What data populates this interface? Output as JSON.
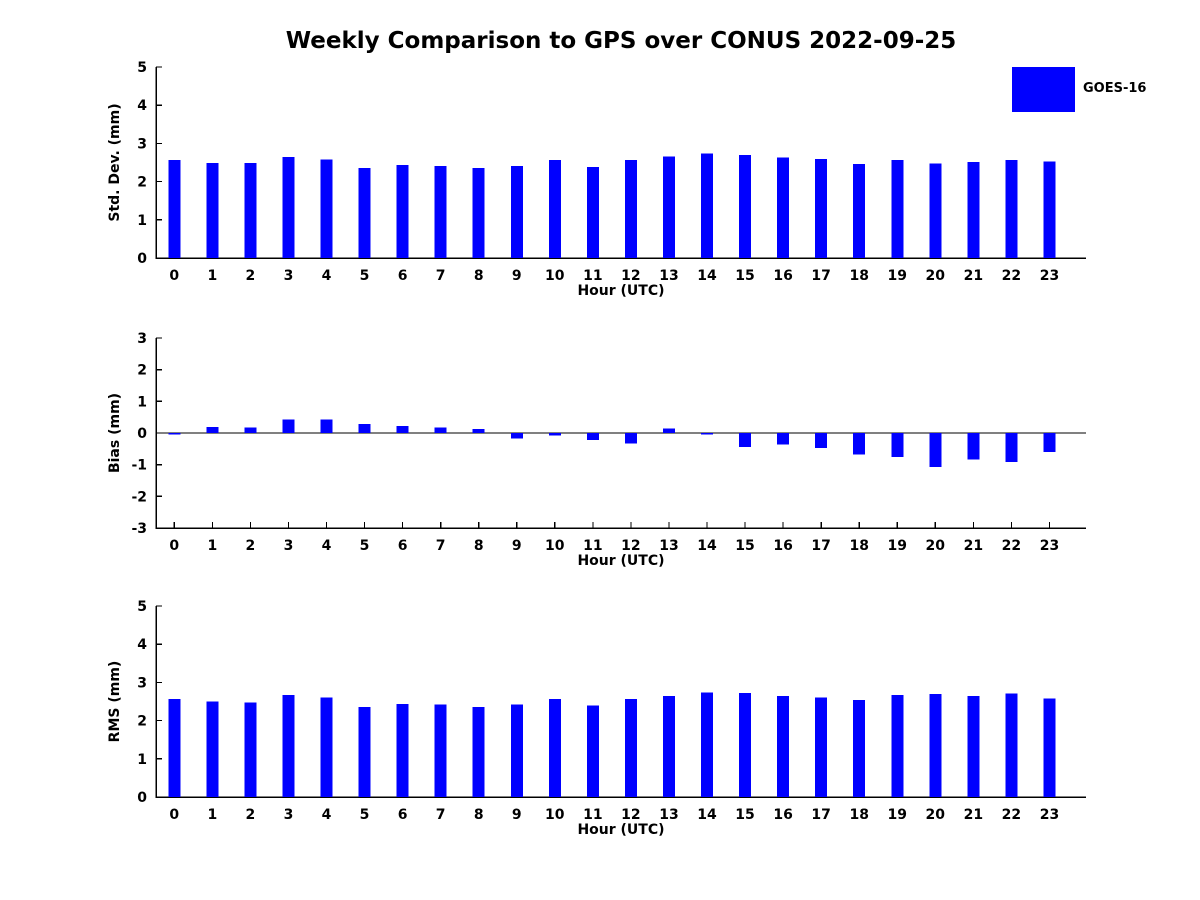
{
  "title": "Weekly Comparison to GPS over CONUS 2022-09-25",
  "legend": {
    "label": "GOES-16",
    "color": "#0000ff"
  },
  "chart_data": [
    {
      "type": "bar",
      "title": "",
      "xlabel": "Hour (UTC)",
      "ylabel": "Std. Dev. (mm)",
      "ylim": [
        0,
        5
      ],
      "yticks": [
        0,
        1,
        2,
        3,
        4,
        5
      ],
      "grid": false,
      "legend_entry": "GOES-16",
      "bar_color": "#0000ff",
      "categories": [
        "0",
        "1",
        "2",
        "3",
        "4",
        "5",
        "6",
        "7",
        "8",
        "9",
        "10",
        "11",
        "12",
        "13",
        "14",
        "15",
        "16",
        "17",
        "18",
        "19",
        "20",
        "21",
        "22",
        "23"
      ],
      "values": [
        2.57,
        2.49,
        2.49,
        2.64,
        2.58,
        2.36,
        2.43,
        2.41,
        2.36,
        2.41,
        2.57,
        2.38,
        2.56,
        2.66,
        2.74,
        2.69,
        2.63,
        2.59,
        2.46,
        2.56,
        2.48,
        2.51,
        2.56,
        2.53
      ]
    },
    {
      "type": "bar",
      "title": "",
      "xlabel": "Hour (UTC)",
      "ylabel": "Bias (mm)",
      "ylim": [
        -3,
        3
      ],
      "yticks": [
        -3,
        -2,
        -1,
        0,
        1,
        2,
        3
      ],
      "grid": false,
      "legend_entry": "GOES-16",
      "bar_color": "#0000ff",
      "categories": [
        "0",
        "1",
        "2",
        "3",
        "4",
        "5",
        "6",
        "7",
        "8",
        "9",
        "10",
        "11",
        "12",
        "13",
        "14",
        "15",
        "16",
        "17",
        "18",
        "19",
        "20",
        "21",
        "22",
        "23"
      ],
      "values": [
        -0.05,
        0.19,
        0.18,
        0.42,
        0.43,
        0.29,
        0.22,
        0.18,
        0.13,
        -0.18,
        -0.08,
        -0.22,
        -0.33,
        0.15,
        -0.05,
        -0.44,
        -0.36,
        -0.47,
        -0.68,
        -0.76,
        -1.08,
        -0.84,
        -0.92,
        -0.6
      ]
    },
    {
      "type": "bar",
      "title": "",
      "xlabel": "Hour (UTC)",
      "ylabel": "RMS (mm)",
      "ylim": [
        0,
        5
      ],
      "yticks": [
        0,
        1,
        2,
        3,
        4,
        5
      ],
      "grid": false,
      "legend_entry": "GOES-16",
      "bar_color": "#0000ff",
      "categories": [
        "0",
        "1",
        "2",
        "3",
        "4",
        "5",
        "6",
        "7",
        "8",
        "9",
        "10",
        "11",
        "12",
        "13",
        "14",
        "15",
        "16",
        "17",
        "18",
        "19",
        "20",
        "21",
        "22",
        "23"
      ],
      "values": [
        2.57,
        2.5,
        2.48,
        2.67,
        2.61,
        2.36,
        2.44,
        2.42,
        2.36,
        2.42,
        2.56,
        2.4,
        2.57,
        2.65,
        2.74,
        2.72,
        2.65,
        2.61,
        2.54,
        2.67,
        2.69,
        2.64,
        2.71,
        2.58
      ]
    }
  ]
}
